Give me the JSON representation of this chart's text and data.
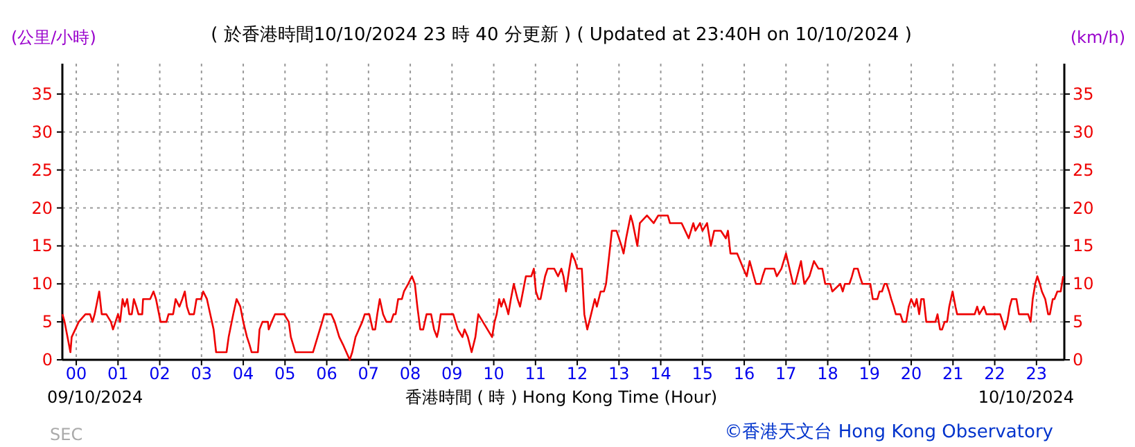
{
  "chart_data": {
    "type": "line",
    "title": "( 於香港時間10/10/2024 23 時 40 分更新 ) ( Updated at 23:40H on 10/10/2024 )",
    "xlabel": "香港時間 ( 時 )  Hong Kong Time (Hour)",
    "ylabel": "(公里/小時)",
    "y2label": "(km/h)",
    "annotations": [
      "09/10/2024",
      "10/10/2024",
      "©香港天文台 Hong Kong Observatory",
      "SEC"
    ],
    "x": [
      -0.33,
      -0.28,
      -0.14,
      -0.11,
      0.06,
      0.22,
      0.33,
      0.39,
      0.44,
      0.55,
      0.61,
      0.72,
      0.83,
      0.88,
      0.94,
      1.0,
      1.05,
      1.11,
      1.16,
      1.22,
      1.27,
      1.33,
      1.38,
      1.44,
      1.49,
      1.58,
      1.6,
      1.77,
      1.85,
      1.91,
      2.02,
      2.16,
      2.21,
      2.32,
      2.38,
      2.47,
      2.54,
      2.6,
      2.65,
      2.71,
      2.82,
      2.88,
      2.99,
      3.04,
      3.13,
      3.21,
      3.29,
      3.35,
      3.6,
      3.65,
      3.76,
      3.84,
      3.93,
      4.0,
      4.09,
      4.15,
      4.2,
      4.35,
      4.39,
      4.46,
      4.59,
      4.61,
      4.68,
      4.76,
      4.98,
      5.09,
      5.14,
      5.25,
      5.67,
      5.78,
      5.89,
      5.94,
      6.11,
      6.19,
      6.3,
      6.39,
      6.47,
      6.55,
      6.61,
      6.69,
      6.77,
      6.85,
      6.91,
      7.02,
      7.1,
      7.16,
      7.21,
      7.27,
      7.35,
      7.43,
      7.54,
      7.6,
      7.65,
      7.71,
      7.8,
      7.85,
      7.95,
      8.04,
      8.11,
      8.17,
      8.24,
      8.31,
      8.39,
      8.5,
      8.57,
      8.64,
      8.68,
      8.73,
      9.03,
      9.14,
      9.25,
      9.3,
      9.38,
      9.47,
      9.56,
      9.63,
      9.74,
      9.85,
      9.96,
      10.02,
      10.07,
      10.13,
      10.18,
      10.24,
      10.3,
      10.35,
      10.41,
      10.48,
      10.57,
      10.63,
      10.7,
      10.77,
      10.9,
      10.96,
      11.01,
      11.07,
      11.12,
      11.23,
      11.29,
      11.45,
      11.54,
      11.62,
      11.67,
      11.73,
      11.81,
      11.87,
      11.95,
      12.0,
      12.11,
      12.17,
      12.24,
      12.31,
      12.42,
      12.47,
      12.56,
      12.64,
      12.69,
      12.83,
      12.94,
      13.06,
      13.11,
      13.17,
      13.28,
      13.33,
      13.44,
      13.5,
      13.67,
      13.83,
      13.94,
      14.17,
      14.22,
      14.5,
      14.67,
      14.78,
      14.83,
      14.94,
      15.0,
      15.11,
      15.2,
      15.28,
      15.44,
      15.56,
      15.61,
      15.67,
      15.83,
      15.98,
      16.06,
      16.13,
      16.28,
      16.39,
      16.44,
      16.5,
      16.72,
      16.78,
      16.89,
      17.0,
      17.17,
      17.22,
      17.36,
      17.44,
      17.56,
      17.67,
      17.78,
      17.87,
      17.94,
      18.06,
      18.11,
      18.3,
      18.36,
      18.41,
      18.52,
      18.58,
      18.63,
      18.72,
      18.77,
      18.83,
      18.91,
      19.02,
      19.08,
      19.19,
      19.24,
      19.3,
      19.36,
      19.41,
      19.47,
      19.52,
      19.58,
      19.63,
      19.74,
      19.8,
      19.88,
      19.94,
      20.0,
      20.08,
      20.13,
      20.19,
      20.24,
      20.3,
      20.36,
      20.41,
      20.58,
      20.63,
      20.69,
      20.74,
      20.8,
      20.86,
      20.91,
      20.99,
      21.06,
      21.1,
      21.52,
      21.58,
      21.63,
      21.74,
      21.8,
      22.13,
      22.19,
      22.24,
      22.3,
      22.36,
      22.41,
      22.52,
      22.58,
      22.8,
      22.86,
      22.91,
      22.97,
      23.02,
      23.08,
      23.13,
      23.21,
      23.28,
      23.32,
      23.39,
      23.43,
      23.5,
      23.58,
      23.64
    ],
    "series": [
      {
        "color": "#ee0000",
        "values": [
          6,
          5,
          1,
          3,
          5,
          6,
          6,
          5,
          6,
          9,
          6,
          6,
          5,
          4,
          5,
          6,
          5,
          8,
          7,
          8,
          6,
          6,
          8,
          7,
          6,
          6,
          8,
          8,
          9,
          8,
          5,
          5,
          6,
          6,
          8,
          7,
          8,
          9,
          7,
          6,
          6,
          8,
          8,
          9,
          8,
          6,
          4,
          1,
          1,
          3,
          6,
          8,
          7,
          5,
          3,
          2,
          1,
          1,
          4,
          5,
          5,
          4,
          5,
          6,
          6,
          5,
          3,
          1,
          1,
          3,
          5,
          6,
          6,
          5,
          3,
          2,
          1,
          0,
          1,
          3,
          4,
          5,
          6,
          6,
          4,
          4,
          6,
          8,
          6,
          5,
          5,
          6,
          6,
          8,
          8,
          9,
          10,
          11,
          10,
          7,
          4,
          4,
          6,
          6,
          4,
          3,
          4,
          6,
          6,
          4,
          3,
          4,
          3,
          1,
          3,
          6,
          5,
          4,
          3,
          5,
          6,
          8,
          7,
          8,
          7,
          6,
          8,
          10,
          8,
          7,
          9,
          11,
          11,
          12,
          9,
          8,
          8,
          11,
          12,
          12,
          11,
          12,
          11,
          9,
          12,
          14,
          13,
          12,
          12,
          6,
          4,
          5.5,
          8,
          7,
          9,
          9,
          10,
          17,
          17,
          15,
          14,
          16,
          19,
          18,
          15,
          18,
          19,
          18,
          19,
          19,
          18,
          18,
          16,
          18,
          17,
          18,
          17,
          18,
          15,
          17,
          17,
          16,
          17,
          14,
          14,
          12,
          11,
          13,
          10,
          10,
          11,
          12,
          12,
          11,
          12,
          14,
          10,
          10,
          13,
          10,
          11,
          13,
          12,
          12,
          10,
          10,
          9,
          10,
          9,
          10,
          10,
          11,
          12,
          12,
          11,
          10,
          10,
          10,
          8,
          8,
          9,
          9,
          10,
          10,
          9,
          8,
          7,
          6,
          6,
          5,
          5,
          7,
          8,
          7,
          8,
          6,
          8,
          8,
          5,
          5,
          5,
          6,
          4,
          4,
          5,
          5,
          7,
          9,
          7,
          6,
          6,
          7,
          6,
          7,
          6,
          6,
          5,
          4,
          5,
          7,
          8,
          8,
          6,
          6,
          5,
          8,
          10,
          11,
          10,
          9,
          8,
          6,
          6,
          8,
          8,
          9,
          9,
          11
        ]
      }
    ],
    "xlim": [
      -0.333,
      23.667
    ],
    "xticks": [
      {
        "value": 0,
        "label": "00"
      },
      {
        "value": 1,
        "label": "01"
      },
      {
        "value": 2,
        "label": "02"
      },
      {
        "value": 3,
        "label": "03"
      },
      {
        "value": 4,
        "label": "04"
      },
      {
        "value": 5,
        "label": "05"
      },
      {
        "value": 6,
        "label": "06"
      },
      {
        "value": 7,
        "label": "07"
      },
      {
        "value": 8,
        "label": "08"
      },
      {
        "value": 9,
        "label": "09"
      },
      {
        "value": 10,
        "label": "10"
      },
      {
        "value": 11,
        "label": "11"
      },
      {
        "value": 12,
        "label": "12"
      },
      {
        "value": 13,
        "label": "13"
      },
      {
        "value": 14,
        "label": "14"
      },
      {
        "value": 15,
        "label": "15"
      },
      {
        "value": 16,
        "label": "16"
      },
      {
        "value": 17,
        "label": "17"
      },
      {
        "value": 18,
        "label": "18"
      },
      {
        "value": 19,
        "label": "19"
      },
      {
        "value": 20,
        "label": "20"
      },
      {
        "value": 21,
        "label": "21"
      },
      {
        "value": 22,
        "label": "22"
      },
      {
        "value": 23,
        "label": "23"
      }
    ],
    "ylim": [
      0,
      39
    ],
    "yticks": [
      0,
      5,
      10,
      15,
      20,
      25,
      30,
      35
    ],
    "y2lim": [
      0,
      39
    ],
    "y2ticks": [
      0,
      5,
      10,
      15,
      20,
      25,
      30,
      35
    ],
    "grid": true
  }
}
